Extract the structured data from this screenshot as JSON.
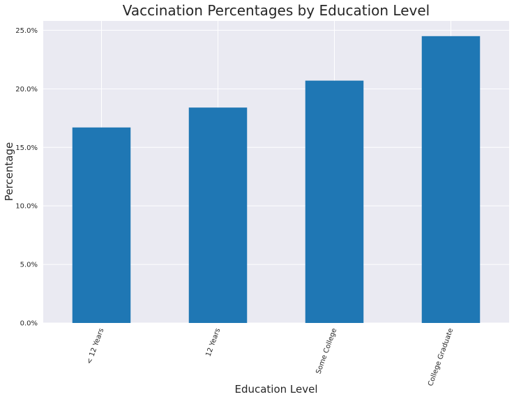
{
  "chart_data": {
    "type": "bar",
    "title": "Vaccination Percentages by Education Level",
    "xlabel": "Education Level",
    "ylabel": "Percentage",
    "categories": [
      "< 12 Years",
      "12 Years",
      "Some College",
      "College Graduate"
    ],
    "values": [
      16.7,
      18.4,
      20.7,
      24.5
    ],
    "ylim": [
      0,
      25.8
    ],
    "yticks": [
      0,
      5,
      10,
      15,
      20,
      25
    ],
    "ytick_labels": [
      "0.0%",
      "5.0%",
      "10.0%",
      "15.0%",
      "20.0%",
      "25.0%"
    ],
    "grid": true,
    "legend": "none",
    "bar_color": "#1f77b4",
    "background_color": "#eaeaf2"
  }
}
